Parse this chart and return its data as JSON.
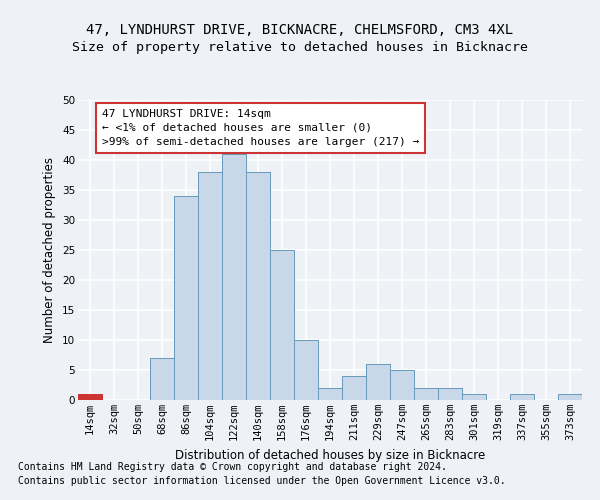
{
  "title1": "47, LYNDHURST DRIVE, BICKNACRE, CHELMSFORD, CM3 4XL",
  "title2": "Size of property relative to detached houses in Bicknacre",
  "xlabel": "Distribution of detached houses by size in Bicknacre",
  "ylabel": "Number of detached properties",
  "categories": [
    "14sqm",
    "32sqm",
    "50sqm",
    "68sqm",
    "86sqm",
    "104sqm",
    "122sqm",
    "140sqm",
    "158sqm",
    "176sqm",
    "194sqm",
    "211sqm",
    "229sqm",
    "247sqm",
    "265sqm",
    "283sqm",
    "301sqm",
    "319sqm",
    "337sqm",
    "355sqm",
    "373sqm"
  ],
  "values": [
    1,
    0,
    0,
    7,
    34,
    38,
    41,
    38,
    25,
    10,
    2,
    4,
    6,
    5,
    2,
    2,
    1,
    0,
    1,
    0,
    1
  ],
  "bar_color": "#c8d8e8",
  "bar_edge_color": "#6699bb",
  "highlight_index": 0,
  "highlight_color": "#cc3333",
  "annotation_text": "47 LYNDHURST DRIVE: 14sqm\n← <1% of detached houses are smaller (0)\n>99% of semi-detached houses are larger (217) →",
  "annotation_box_facecolor": "#ffffff",
  "annotation_box_edgecolor": "#cc3333",
  "ylim": [
    0,
    50
  ],
  "yticks": [
    0,
    5,
    10,
    15,
    20,
    25,
    30,
    35,
    40,
    45,
    50
  ],
  "footnote1": "Contains HM Land Registry data © Crown copyright and database right 2024.",
  "footnote2": "Contains public sector information licensed under the Open Government Licence v3.0.",
  "background_color": "#eef2f7",
  "plot_background_color": "#eef2f7",
  "grid_color": "#ffffff",
  "title_fontsize": 10,
  "subtitle_fontsize": 9.5,
  "axis_label_fontsize": 8.5,
  "tick_fontsize": 7.5,
  "annotation_fontsize": 8,
  "footnote_fontsize": 7
}
